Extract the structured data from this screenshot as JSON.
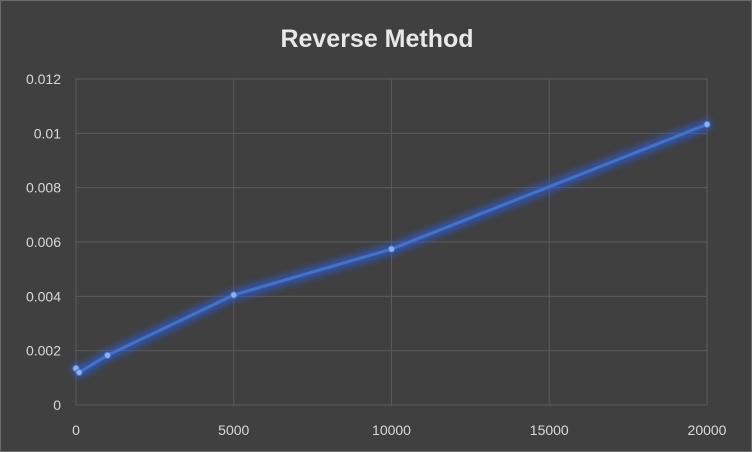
{
  "chart_data": {
    "type": "line",
    "title": "Reverse Method",
    "xlabel": "",
    "ylabel": "",
    "x": [
      0,
      100,
      1000,
      5000,
      10000,
      20000
    ],
    "series": [
      {
        "values": [
          0.00135,
          0.0012,
          0.00183,
          0.00405,
          0.00574,
          0.01033
        ]
      }
    ],
    "xlim": [
      0,
      20000
    ],
    "ylim": [
      0,
      0.012
    ],
    "xticks": [
      "0",
      "5000",
      "10000",
      "15000",
      "20000"
    ],
    "yticks": [
      "0",
      "0.002",
      "0.004",
      "0.006",
      "0.008",
      "0.01",
      "0.012"
    ],
    "grid": true,
    "legend": "none",
    "colors": {
      "series": "#4472c4",
      "glow": "#2f5bd6",
      "background": "#404040"
    }
  }
}
